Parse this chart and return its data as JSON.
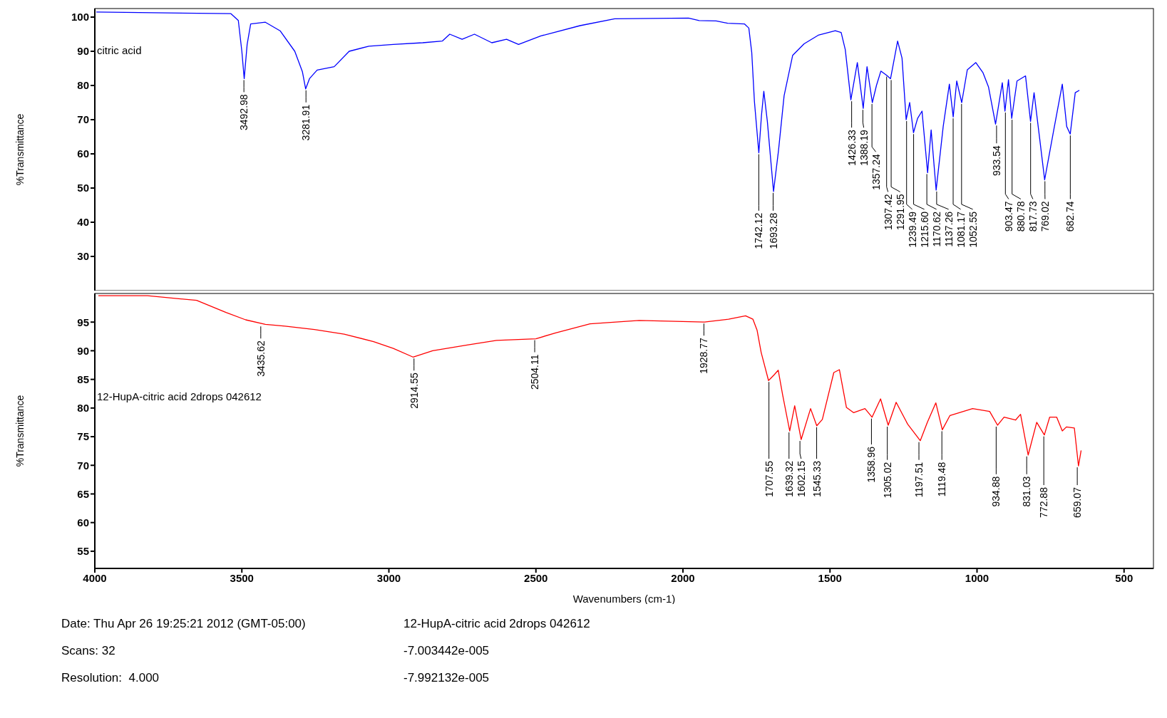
{
  "chart_data": [
    {
      "type": "line",
      "ylabel": "%Transmittance",
      "xlim": [
        4000,
        400
      ],
      "xticks": [
        4000,
        3500,
        3000,
        2500,
        2000,
        1500,
        1000,
        500
      ],
      "ylim": [
        20,
        102.5
      ],
      "yticks": [
        30,
        40,
        50,
        60,
        70,
        80,
        90,
        100
      ],
      "tick_labels": "y",
      "grid": false,
      "legend": false,
      "x": [
        3995,
        3537,
        3512,
        3500,
        3492,
        3482,
        3470,
        3420,
        3370,
        3320,
        3294,
        3283,
        3270,
        3244,
        3186,
        3135,
        3068,
        2985,
        2885,
        2818,
        2793,
        2751,
        2709,
        2650,
        2600,
        2559,
        2483,
        2350,
        2232,
        1981,
        1945,
        1887,
        1848,
        1791,
        1776,
        1766,
        1757,
        1742,
        1733,
        1725,
        1713,
        1692,
        1675,
        1656,
        1627,
        1588,
        1540,
        1482,
        1462,
        1448,
        1429,
        1407,
        1387,
        1374,
        1356,
        1342,
        1327,
        1308,
        1294,
        1270,
        1255,
        1241,
        1229,
        1216,
        1202,
        1187,
        1168,
        1156,
        1139,
        1115,
        1094,
        1081,
        1069,
        1052,
        1033,
        1004,
        980,
        961,
        937,
        914,
        905,
        893,
        882,
        864,
        835,
        818,
        806,
        787,
        770,
        739,
        710,
        695,
        683,
        666,
        652
      ],
      "series": [
        {
          "name": "citric acid",
          "color": "#0000ff",
          "values": [
            101.5,
            101,
            99,
            90,
            82,
            92,
            98,
            98.5,
            96,
            90,
            84,
            79,
            82,
            84.5,
            85.5,
            90,
            91.5,
            92,
            92.5,
            93,
            95,
            93.5,
            95,
            92.5,
            93.5,
            92,
            94.5,
            97.5,
            99.5,
            99.7,
            99,
            98.9,
            98.2,
            98,
            96.8,
            89.6,
            75.4,
            60.3,
            71.2,
            78.3,
            69.5,
            49,
            61,
            77,
            88.8,
            92.2,
            94.7,
            96,
            95.5,
            90.5,
            75.8,
            86.7,
            73.3,
            85.5,
            75,
            80,
            84.2,
            83,
            82,
            93,
            88,
            70,
            75,
            66.2,
            70.4,
            72.5,
            54.5,
            67,
            49.4,
            68,
            80.4,
            70.8,
            81.3,
            75,
            84.6,
            86.7,
            83.8,
            79.6,
            68.7,
            80.8,
            72.5,
            81.7,
            70.4,
            81.3,
            82.8,
            69.5,
            77.9,
            64.5,
            52.4,
            67,
            80.4,
            68,
            65.8,
            77.9,
            78.6
          ]
        }
      ],
      "annotations": [
        {
          "text": "3492.98",
          "x": 3492.98,
          "y": 82
        },
        {
          "text": "3281.91",
          "x": 3281.91,
          "y": 79
        },
        {
          "text": "1742.12",
          "x": 1742.12,
          "y": 60.3
        },
        {
          "text": "1693.28",
          "x": 1693.28,
          "y": 49
        },
        {
          "text": "1426.33",
          "x": 1426.33,
          "y": 75.8
        },
        {
          "text": "1388.19",
          "x": 1388.19,
          "y": 73.3
        },
        {
          "text": "1357.24",
          "x": 1357.24,
          "y": 75
        },
        {
          "text": "1307.42",
          "x": 1307.42,
          "y": 83
        },
        {
          "text": "1291.95",
          "x": 1291.95,
          "y": 82
        },
        {
          "text": "1239.49",
          "x": 1239.49,
          "y": 70
        },
        {
          "text": "1215.60",
          "x": 1215.6,
          "y": 66.2
        },
        {
          "text": "1170.62",
          "x": 1170.62,
          "y": 54.5
        },
        {
          "text": "1137.26",
          "x": 1137.26,
          "y": 49.4
        },
        {
          "text": "1081.17",
          "x": 1081.17,
          "y": 70.8
        },
        {
          "text": "1052.55",
          "x": 1052.55,
          "y": 75
        },
        {
          "text": "933.54",
          "x": 933.54,
          "y": 68.7
        },
        {
          "text": "903.47",
          "x": 903.47,
          "y": 72.5
        },
        {
          "text": "880.78",
          "x": 880.78,
          "y": 70.4
        },
        {
          "text": "817.73",
          "x": 817.73,
          "y": 69.5
        },
        {
          "text": "769.02",
          "x": 769.02,
          "y": 52.4
        },
        {
          "text": "682.74",
          "x": 682.74,
          "y": 65.8
        }
      ]
    },
    {
      "type": "line",
      "ylabel": "%Transmittance",
      "xlabel": "Wavenumbers (cm-1)",
      "xlim": [
        4000,
        400
      ],
      "xticks": [
        4000,
        3500,
        3000,
        2500,
        2000,
        1500,
        1000,
        500
      ],
      "ylim": [
        52,
        100
      ],
      "yticks": [
        55,
        60,
        65,
        70,
        75,
        80,
        85,
        90,
        95
      ],
      "grid": false,
      "legend": false,
      "x": [
        3988,
        3821,
        3654,
        3554,
        3487,
        3420,
        3353,
        3253,
        3152,
        3052,
        2985,
        2918,
        2851,
        2734,
        2634,
        2500,
        2433,
        2316,
        2149,
        1927,
        1845,
        1787,
        1762,
        1748,
        1734,
        1709,
        1690,
        1676,
        1661,
        1637,
        1620,
        1598,
        1566,
        1545,
        1526,
        1487,
        1468,
        1444,
        1420,
        1381,
        1357,
        1328,
        1302,
        1275,
        1236,
        1193,
        1169,
        1140,
        1118,
        1092,
        1015,
        957,
        930,
        908,
        869,
        852,
        826,
        797,
        771,
        753,
        729,
        710,
        696,
        669,
        655,
        646
      ],
      "series": [
        {
          "name": "12-HupA-citric acid 2drops 042612",
          "color": "#ff0000",
          "values": [
            99.6,
            99.6,
            98.8,
            96.7,
            95.4,
            94.6,
            94.3,
            93.7,
            92.9,
            91.6,
            90.4,
            88.9,
            90,
            91,
            91.8,
            92.1,
            93.1,
            94.7,
            95.3,
            95,
            95.5,
            96.1,
            95.5,
            93.6,
            89.7,
            84.8,
            85.8,
            86.6,
            82.3,
            76,
            80.4,
            74.5,
            79.9,
            76.9,
            78,
            86.2,
            86.7,
            80.1,
            79.2,
            79.9,
            78.4,
            81.6,
            77,
            81,
            77.2,
            74.3,
            77.5,
            80.9,
            76.2,
            78.7,
            79.9,
            79.4,
            77,
            78.4,
            77.9,
            78.9,
            71.8,
            77.5,
            75.3,
            78.4,
            78.4,
            76,
            76.7,
            76.5,
            69.9,
            72.6
          ]
        }
      ],
      "annotations": [
        {
          "text": "3435.62",
          "x": 3435.62,
          "y": 94.5
        },
        {
          "text": "2914.55",
          "x": 2914.55,
          "y": 88.9
        },
        {
          "text": "2504.11",
          "x": 2504.11,
          "y": 92.1
        },
        {
          "text": "1928.77",
          "x": 1928.77,
          "y": 95
        },
        {
          "text": "1707.55",
          "x": 1707.55,
          "y": 84.8
        },
        {
          "text": "1639.32",
          "x": 1639.32,
          "y": 76
        },
        {
          "text": "1602.15",
          "x": 1602.15,
          "y": 74.5
        },
        {
          "text": "1545.33",
          "x": 1545.33,
          "y": 76.9
        },
        {
          "text": "1358.96",
          "x": 1358.96,
          "y": 78.4
        },
        {
          "text": "1305.02",
          "x": 1305.02,
          "y": 77
        },
        {
          "text": "1197.51",
          "x": 1197.51,
          "y": 74.3
        },
        {
          "text": "1119.48",
          "x": 1119.48,
          "y": 76.2
        },
        {
          "text": "934.88",
          "x": 934.88,
          "y": 77
        },
        {
          "text": "831.03",
          "x": 831.03,
          "y": 71.8
        },
        {
          "text": "772.88",
          "x": 772.88,
          "y": 75.3
        },
        {
          "text": "659.07",
          "x": 659.07,
          "y": 69.9
        },
        "Date: Thu Apr 26 19:25:21 2012 (GMT-05:00)",
        "12-HupA-citric acid 2drops 042612",
        "Scans: 32",
        "-7.003442e-005",
        "Resolution:  4.000",
        "-7.992132e-005"
      ]
    }
  ]
}
